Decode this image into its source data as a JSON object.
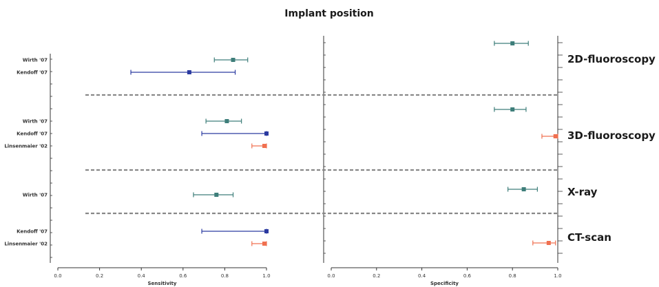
{
  "chart_data": {
    "type": "forest",
    "title": "Implant position",
    "axes": {
      "sensitivity": {
        "xlabel": "Sensitivity",
        "xlim": [
          0,
          1
        ],
        "ticks": [
          "0.0",
          "0.2",
          "0.4",
          "0.6",
          "0.8",
          "1.0"
        ]
      },
      "specificity": {
        "xlabel": "Specificity",
        "xlim": [
          0,
          1
        ],
        "ticks": [
          "0.0",
          "0.2",
          "0.4",
          "0.6",
          "0.8",
          "1.0"
        ]
      }
    },
    "colors": {
      "Wirth '07": "#3e7e7a",
      "Kendoff '07": "#2b3aa0",
      "Linsenmaier '02": "#f07050",
      "separator": "#888888",
      "axis": "#333333"
    },
    "groups": [
      {
        "name": "2D-fluoroscopy",
        "studies": [
          {
            "label": "Wirth '07",
            "sensitivity": {
              "est": 0.84,
              "lo": 0.75,
              "hi": 0.91
            }
          },
          {
            "label": "Kendoff '07",
            "sensitivity": {
              "est": 0.63,
              "lo": 0.35,
              "hi": 0.85
            }
          }
        ],
        "specificity": [
          {
            "study": "Wirth '07",
            "est": 0.8,
            "lo": 0.72,
            "hi": 0.87
          }
        ]
      },
      {
        "name": "3D-fluoroscopy",
        "studies": [
          {
            "label": "Wirth '07",
            "sensitivity": {
              "est": 0.81,
              "lo": 0.71,
              "hi": 0.88
            }
          },
          {
            "label": "Kendoff '07",
            "sensitivity": {
              "est": 1.0,
              "lo": 0.69,
              "hi": 1.0
            }
          },
          {
            "label": "Linsenmaier '02",
            "sensitivity": {
              "est": 0.99,
              "lo": 0.93,
              "hi": 1.0
            }
          }
        ],
        "specificity": [
          {
            "study": "Wirth '07",
            "est": 0.8,
            "lo": 0.72,
            "hi": 0.86
          },
          {
            "study": "Linsenmaier '02",
            "est": 0.99,
            "lo": 0.93,
            "hi": 1.0
          }
        ]
      },
      {
        "name": "X-ray",
        "studies": [
          {
            "label": "Wirth '07",
            "sensitivity": {
              "est": 0.76,
              "lo": 0.65,
              "hi": 0.84
            }
          }
        ],
        "specificity": [
          {
            "study": "Wirth '07",
            "est": 0.85,
            "lo": 0.78,
            "hi": 0.91
          }
        ]
      },
      {
        "name": "CT-scan",
        "studies": [
          {
            "label": "Kendoff '07",
            "sensitivity": {
              "est": 1.0,
              "lo": 0.69,
              "hi": 1.0
            }
          },
          {
            "label": "Linsenmaier '02",
            "sensitivity": {
              "est": 0.99,
              "lo": 0.93,
              "hi": 1.0
            }
          }
        ],
        "specificity": [
          {
            "study": "Linsenmaier '02",
            "est": 0.96,
            "lo": 0.89,
            "hi": 0.99
          }
        ]
      }
    ]
  }
}
